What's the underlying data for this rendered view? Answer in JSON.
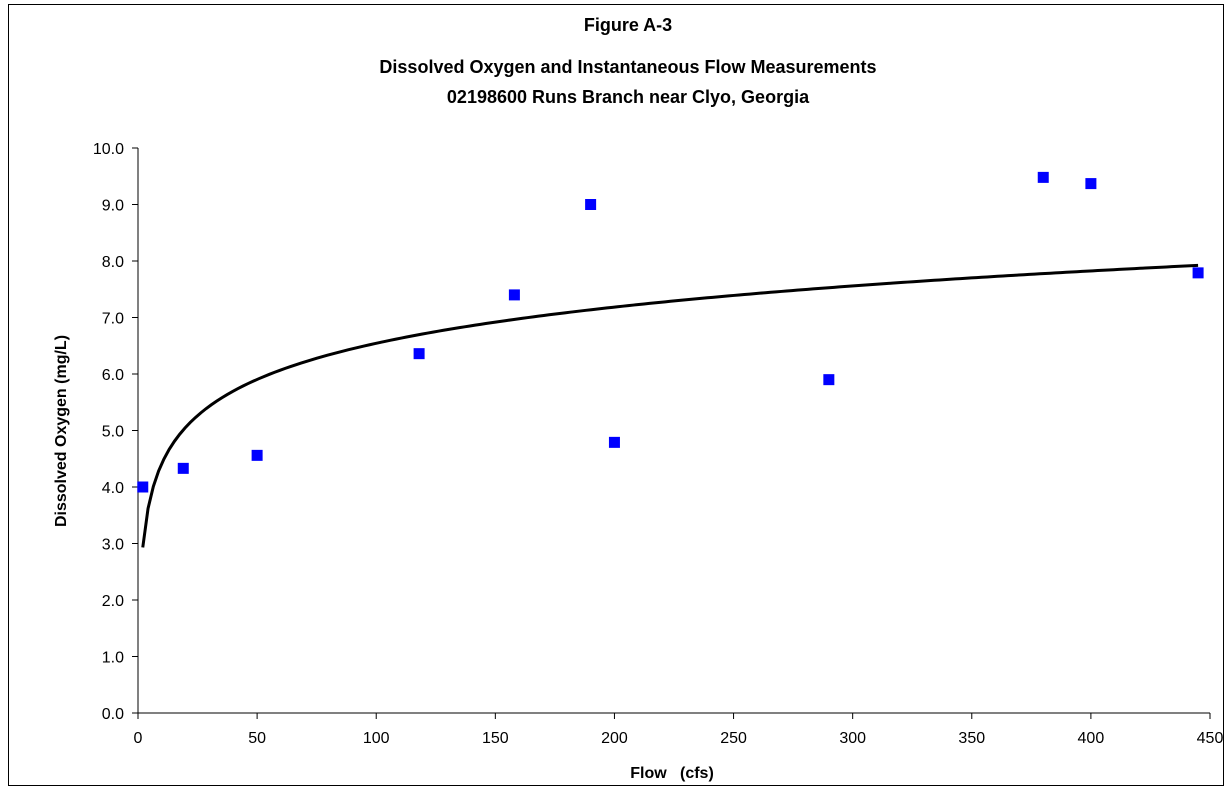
{
  "chart_data": {
    "type": "scatter",
    "title_lines": [
      "Figure A-3",
      "Dissolved Oxygen and Instantaneous Flow Measurements",
      "02198600 Runs Branch near Clyo, Georgia"
    ],
    "xlabel": "Flow   (cfs)",
    "ylabel": "Dissolved Oxygen (mg/L)",
    "xlim": [
      0,
      450
    ],
    "ylim": [
      0,
      10
    ],
    "x_ticks": [
      "0",
      "50",
      "100",
      "150",
      "200",
      "250",
      "300",
      "350",
      "400",
      "450"
    ],
    "y_ticks": [
      "0.0",
      "1.0",
      "2.0",
      "3.0",
      "4.0",
      "5.0",
      "6.0",
      "7.0",
      "8.0",
      "9.0",
      "10.0"
    ],
    "grid": false,
    "marker_color": "#0000ff",
    "trendline_color": "#000000",
    "series": [
      {
        "points": [
          {
            "x": 2,
            "y": 4.0
          },
          {
            "x": 19,
            "y": 4.33
          },
          {
            "x": 50,
            "y": 4.56
          },
          {
            "x": 118,
            "y": 6.36
          },
          {
            "x": 158,
            "y": 7.4
          },
          {
            "x": 190,
            "y": 9.0
          },
          {
            "x": 200,
            "y": 4.79
          },
          {
            "x": 290,
            "y": 5.9
          },
          {
            "x": 380,
            "y": 9.48
          },
          {
            "x": 400,
            "y": 9.37
          },
          {
            "x": 445,
            "y": 7.79
          }
        ]
      }
    ],
    "trendline": {
      "type": "logarithmic",
      "x_range": [
        2,
        445
      ],
      "coef_a": 0.9237,
      "intercept_b": 2.29
    }
  }
}
